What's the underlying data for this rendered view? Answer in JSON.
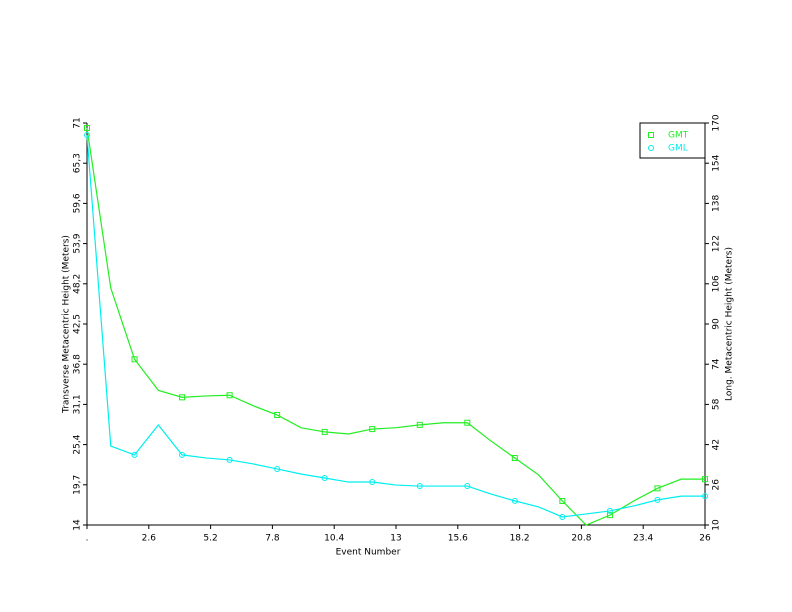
{
  "chart_data": {
    "type": "line",
    "x_label": "Event Number",
    "y_label": "Transverse Metacentric Height (Meters)",
    "y2_label": "Long. Metacentric Height (Meters)",
    "x": [
      0,
      1,
      2,
      3,
      4,
      5,
      6,
      7,
      8,
      9,
      10,
      11,
      12,
      13,
      14,
      15,
      16,
      17,
      18,
      19,
      20,
      21,
      22,
      23,
      24,
      25,
      26
    ],
    "xlim": [
      0,
      26
    ],
    "xticks": [
      {
        "value": 0,
        "label": "."
      },
      2.6,
      5.2,
      7.8,
      10.4,
      13,
      15.6,
      18.2,
      20.8,
      23.4,
      26
    ],
    "ylim": [
      14,
      71
    ],
    "yticks": [
      14,
      {
        "value": 19.7,
        "label": "19,7"
      },
      {
        "value": 25.4,
        "label": "25,4"
      },
      {
        "value": 31.1,
        "label": "31,1"
      },
      {
        "value": 36.8,
        "label": "36,8"
      },
      {
        "value": 42.5,
        "label": "42,5"
      },
      {
        "value": 48.2,
        "label": "48,2"
      },
      {
        "value": 53.9,
        "label": "53,9"
      },
      {
        "value": 59.6,
        "label": "59,6"
      },
      {
        "value": 65.3,
        "label": "65,3"
      },
      71
    ],
    "y2lim": [
      10,
      170
    ],
    "y2ticks": [
      10,
      26,
      42,
      58,
      74,
      90,
      106,
      122,
      138,
      154,
      170
    ],
    "marker_every": 2,
    "legend": "top-right",
    "series": [
      {
        "name": "GMT",
        "color": "#22ee22",
        "marker": "square",
        "values": [
          70.3,
          47.6,
          37.5,
          33.1,
          32.1,
          32.3,
          32.4,
          30.9,
          29.6,
          27.8,
          27.2,
          26.9,
          27.6,
          27.8,
          28.2,
          28.5,
          28.5,
          25.9,
          23.5,
          21.1,
          17.4,
          14,
          15.4,
          17.4,
          19.2,
          20.5,
          20.5
        ]
      },
      {
        "name": "GML",
        "color": "#00eeee",
        "marker": "circle",
        "axis": "y2",
        "values": [
          165.2,
          41.4,
          37.9,
          49.8,
          37.9,
          36.7,
          35.9,
          34.3,
          32.3,
          30.3,
          28.7,
          27.1,
          27.1,
          25.9,
          25.5,
          25.5,
          25.5,
          22.3,
          19.6,
          17.2,
          13.2,
          14.4,
          15.6,
          17.6,
          20,
          21.5,
          21.5
        ]
      }
    ]
  }
}
